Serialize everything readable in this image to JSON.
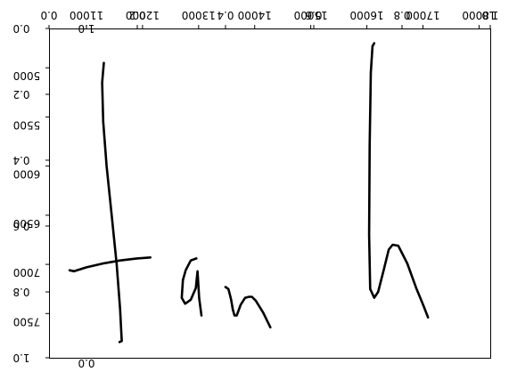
{
  "chart_data": {
    "type": "line",
    "title": "",
    "xlabel": "",
    "ylabel": "",
    "grid": false,
    "legend": "none",
    "colors": {
      "ink": "#000000",
      "background": "#ffffff",
      "axes": "#000000"
    },
    "axes": [
      {
        "name": "primary",
        "xlim": [
          0.0,
          1.0
        ],
        "ylim": [
          1.0,
          0.0
        ],
        "x_ticks": [
          {
            "value": 0.0,
            "label": "0.0"
          },
          {
            "value": 0.2,
            "label": "0.2"
          },
          {
            "value": 0.4,
            "label": "0.4"
          },
          {
            "value": 0.6,
            "label": "0.6"
          },
          {
            "value": 0.8,
            "label": "0.8"
          },
          {
            "value": 1.0,
            "label": "1.0"
          }
        ],
        "y_ticks": [
          {
            "value": 0.0,
            "label": "0.0"
          },
          {
            "value": 0.2,
            "label": "0.2"
          },
          {
            "value": 0.4,
            "label": "0.4"
          },
          {
            "value": 0.6,
            "label": "0.6"
          },
          {
            "value": 0.8,
            "label": "0.8"
          },
          {
            "value": 1.0,
            "label": "1.0"
          }
        ]
      },
      {
        "name": "secondary",
        "xlim": [
          10333,
          18200
        ],
        "ylim": [
          7950,
          4600
        ],
        "x_ticks": [
          {
            "value": 11000,
            "label": "11000"
          },
          {
            "value": 12000,
            "label": "12000"
          },
          {
            "value": 13000,
            "label": "13000"
          },
          {
            "value": 14000,
            "label": "14000"
          },
          {
            "value": 15000,
            "label": "15000"
          },
          {
            "value": 16000,
            "label": "16000"
          },
          {
            "value": 17000,
            "label": "17000"
          },
          {
            "value": 18000,
            "label": "18000"
          }
        ],
        "y_ticks": [
          {
            "value": 5000,
            "label": "5000"
          },
          {
            "value": 5500,
            "label": "5500"
          },
          {
            "value": 6000,
            "label": "6000"
          },
          {
            "value": 6500,
            "label": "6500"
          },
          {
            "value": 7000,
            "label": "7000"
          },
          {
            "value": 7500,
            "label": "7500"
          }
        ]
      }
    ],
    "ghost_labels": [
      "1.0",
      "0.0"
    ],
    "series": [
      {
        "x": [
          11310,
          11280,
          11300,
          11360,
          11450,
          11540,
          11600,
          11630,
          11590
        ],
        "y": [
          4950,
          5150,
          5550,
          6000,
          6500,
          7000,
          7450,
          7780,
          7790
        ]
      },
      {
        "x": [
          10700,
          10780,
          11000,
          11300,
          11600,
          11900,
          12140
        ],
        "y": [
          7060,
          7070,
          7030,
          6990,
          6960,
          6940,
          6930
        ]
      },
      {
        "x": [
          12960,
          12860,
          12770,
          12720,
          12700,
          12760,
          12860,
          12950,
          12980,
          13010,
          13050
        ],
        "y": [
          6940,
          6960,
          7060,
          7160,
          7340,
          7400,
          7360,
          7240,
          7070,
          7340,
          7520
        ]
      },
      {
        "x": [
          13480,
          13530,
          13550,
          13580,
          13610,
          13640,
          13680,
          13750,
          13830,
          13900,
          13950,
          14020,
          14150,
          14280
        ],
        "y": [
          7230,
          7250,
          7290,
          7360,
          7460,
          7520,
          7520,
          7410,
          7340,
          7330,
          7330,
          7370,
          7490,
          7640
        ]
      },
      {
        "x": [
          16130,
          16100,
          16070,
          16050,
          16040,
          16060,
          16130,
          16200,
          16300,
          16390,
          16460,
          16560,
          16720,
          16880,
          17010,
          17090
        ],
        "y": [
          4750,
          4780,
          5050,
          5800,
          6700,
          7250,
          7340,
          7280,
          7060,
          6850,
          6800,
          6810,
          6990,
          7240,
          7420,
          7540
        ]
      }
    ]
  }
}
